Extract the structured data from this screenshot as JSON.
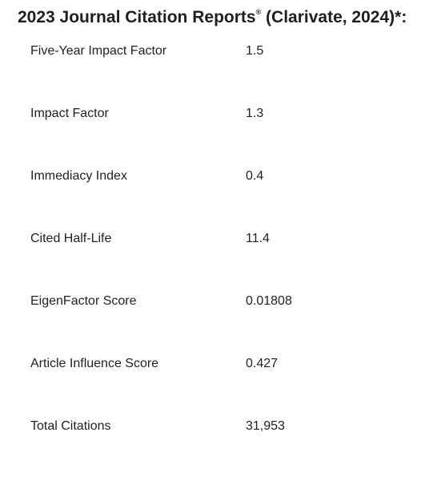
{
  "heading": {
    "title": "2023 Journal Citation Reports",
    "registered_mark": "®",
    "source": " (Clarivate, 2024)*:"
  },
  "metrics": [
    {
      "name": "Five-Year Impact Factor",
      "value": "1.5"
    },
    {
      "name": "Impact Factor",
      "value": "1.3"
    },
    {
      "name": "Immediacy Index",
      "value": "0.4"
    },
    {
      "name": "Cited Half-Life",
      "value": "11.4"
    },
    {
      "name": "EigenFactor Score",
      "value": "0.01808"
    },
    {
      "name": "Article Influence Score",
      "value": "0.427"
    },
    {
      "name": "Total Citations",
      "value": "31,953"
    }
  ]
}
